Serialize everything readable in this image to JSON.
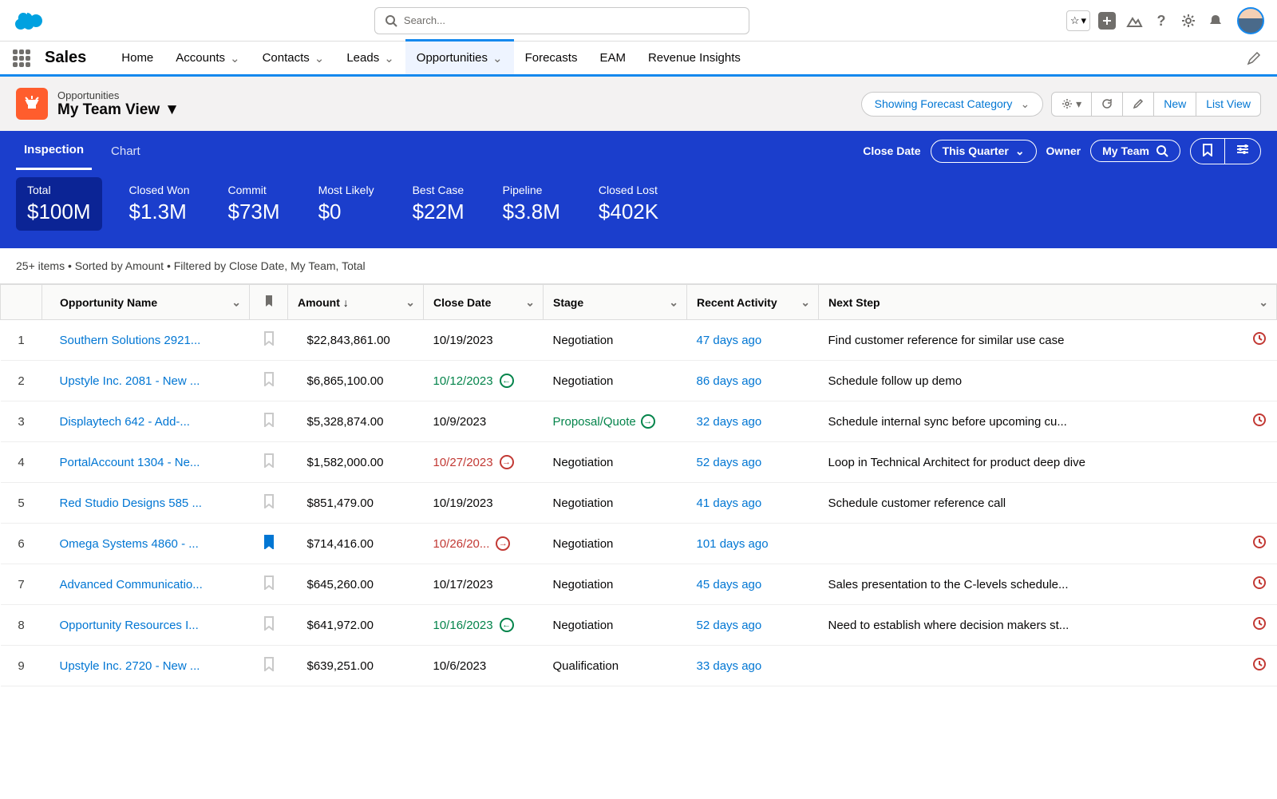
{
  "search": {
    "placeholder": "Search..."
  },
  "app_name": "Sales",
  "nav": {
    "items": [
      "Home",
      "Accounts",
      "Contacts",
      "Leads",
      "Opportunities",
      "Forecasts",
      "EAM",
      "Revenue Insights"
    ],
    "has_dropdown": [
      false,
      true,
      true,
      true,
      true,
      false,
      false,
      false
    ],
    "active_index": 4
  },
  "page": {
    "object_label": "Opportunities",
    "view_name": "My Team View",
    "forecast_label": "Showing Forecast Category",
    "new_label": "New",
    "listview_label": "List View"
  },
  "inspect": {
    "tabs": [
      "Inspection",
      "Chart"
    ],
    "active_tab": 0,
    "close_date_label": "Close Date",
    "quarter_label": "This Quarter",
    "owner_label": "Owner",
    "team_label": "My Team"
  },
  "metrics": [
    {
      "label": "Total",
      "value": "$100M",
      "selected": true
    },
    {
      "label": "Closed Won",
      "value": "$1.3M",
      "selected": false
    },
    {
      "label": "Commit",
      "value": "$73M",
      "selected": false
    },
    {
      "label": "Most Likely",
      "value": "$0",
      "selected": false
    },
    {
      "label": "Best Case",
      "value": "$22M",
      "selected": false
    },
    {
      "label": "Pipeline",
      "value": "$3.8M",
      "selected": false
    },
    {
      "label": "Closed Lost",
      "value": "$402K",
      "selected": false
    }
  ],
  "list_meta": "25+ items • Sorted by Amount • Filtered by Close Date, My Team, Total",
  "columns": [
    "Opportunity Name",
    "Amount",
    "Close Date",
    "Stage",
    "Recent Activity",
    "Next Step"
  ],
  "sort_col": "Amount",
  "rows": [
    {
      "n": 1,
      "name": "Southern Solutions 2921...",
      "amount": "$22,843,861.00",
      "date": "10/19/2023",
      "date_color": "",
      "date_arrow": "",
      "stage": "Negotiation",
      "stage_arrow": "",
      "activity": "47 days ago",
      "next": "Find customer reference for similar use case",
      "bm": false,
      "flag": true
    },
    {
      "n": 2,
      "name": "Upstyle Inc. 2081 - New ...",
      "amount": "$6,865,100.00",
      "date": "10/12/2023",
      "date_color": "green",
      "date_arrow": "left",
      "stage": "Negotiation",
      "stage_arrow": "",
      "activity": "86 days ago",
      "next": "Schedule follow up demo",
      "bm": false,
      "flag": false
    },
    {
      "n": 3,
      "name": "Displaytech 642 - Add-...",
      "amount": "$5,328,874.00",
      "date": "10/9/2023",
      "date_color": "",
      "date_arrow": "",
      "stage": "Proposal/Quote",
      "stage_arrow": "green",
      "activity": "32 days ago",
      "next": "Schedule internal sync before upcoming cu...",
      "bm": false,
      "flag": true
    },
    {
      "n": 4,
      "name": "PortalAccount 1304 - Ne...",
      "amount": "$1,582,000.00",
      "date": "10/27/2023",
      "date_color": "red",
      "date_arrow": "right",
      "stage": "Negotiation",
      "stage_arrow": "",
      "activity": "52 days ago",
      "next": "Loop in Technical Architect for product deep dive",
      "bm": false,
      "flag": false
    },
    {
      "n": 5,
      "name": "Red Studio Designs 585 ...",
      "amount": "$851,479.00",
      "date": "10/19/2023",
      "date_color": "",
      "date_arrow": "",
      "stage": "Negotiation",
      "stage_arrow": "",
      "activity": "41 days ago",
      "next": "Schedule customer reference call",
      "bm": false,
      "flag": false
    },
    {
      "n": 6,
      "name": "Omega Systems 4860 - ...",
      "amount": "$714,416.00",
      "date": "10/26/20...",
      "date_color": "red",
      "date_arrow": "right",
      "stage": "Negotiation",
      "stage_arrow": "",
      "activity": "101 days ago",
      "next": "",
      "bm": true,
      "flag": true
    },
    {
      "n": 7,
      "name": "Advanced Communicatio...",
      "amount": "$645,260.00",
      "date": "10/17/2023",
      "date_color": "",
      "date_arrow": "",
      "stage": "Negotiation",
      "stage_arrow": "",
      "activity": "45 days ago",
      "next": "Sales presentation to the C-levels schedule...",
      "bm": false,
      "flag": true
    },
    {
      "n": 8,
      "name": "Opportunity Resources I...",
      "amount": "$641,972.00",
      "date": "10/16/2023",
      "date_color": "green",
      "date_arrow": "left",
      "stage": "Negotiation",
      "stage_arrow": "",
      "activity": "52 days ago",
      "next": "Need to establish where decision makers st...",
      "bm": false,
      "flag": true
    },
    {
      "n": 9,
      "name": "Upstyle Inc. 2720 - New ...",
      "amount": "$639,251.00",
      "date": "10/6/2023",
      "date_color": "",
      "date_arrow": "",
      "stage": "Qualification",
      "stage_arrow": "",
      "activity": "33 days ago",
      "next": "",
      "bm": false,
      "flag": true
    }
  ]
}
